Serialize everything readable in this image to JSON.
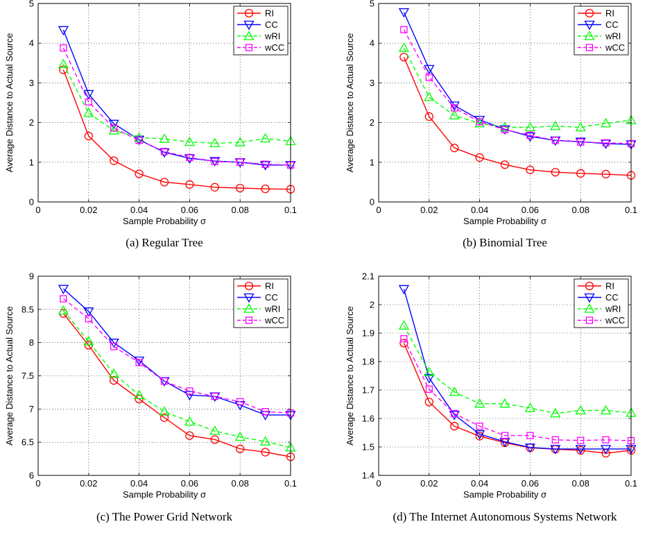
{
  "figure": {
    "legend_placement": "top-right",
    "grid": "dotted",
    "series_styles": [
      {
        "color": "#ff0000",
        "dash": "solid",
        "marker": "circle"
      },
      {
        "color": "#0000ff",
        "dash": "solid",
        "marker": "triangle-down"
      },
      {
        "color": "#00ff00",
        "dash": "dashed",
        "marker": "triangle-up"
      },
      {
        "color": "#ff00ff",
        "dash": "dashed",
        "marker": "square"
      }
    ]
  },
  "chart_data": [
    {
      "type": "line",
      "caption": "(a) Regular Tree",
      "xlabel": "Sample Probability σ",
      "ylabel": "Average Distance to Actual Source",
      "xlim": [
        0,
        0.1
      ],
      "ylim": [
        0,
        5
      ],
      "xticks": [
        "0",
        "0.02",
        "0.04",
        "0.06",
        "0.08",
        "0.1"
      ],
      "yticks": [
        "0",
        "1",
        "2",
        "3",
        "4",
        "5"
      ],
      "x": [
        0.01,
        0.02,
        0.03,
        0.04,
        0.05,
        0.06,
        0.07,
        0.08,
        0.09,
        0.1
      ],
      "series": [
        {
          "name": "RI",
          "values": [
            3.33,
            1.66,
            1.04,
            0.71,
            0.5,
            0.44,
            0.37,
            0.35,
            0.33,
            0.32
          ]
        },
        {
          "name": "CC",
          "values": [
            4.33,
            2.72,
            1.97,
            1.57,
            1.25,
            1.1,
            1.03,
            1.0,
            0.93,
            0.93
          ]
        },
        {
          "name": "wRI",
          "values": [
            3.47,
            2.24,
            1.8,
            1.62,
            1.59,
            1.51,
            1.48,
            1.5,
            1.6,
            1.53
          ]
        },
        {
          "name": "wCC",
          "values": [
            3.88,
            2.52,
            1.86,
            1.55,
            1.27,
            1.12,
            1.02,
            1.0,
            0.95,
            0.93
          ]
        }
      ]
    },
    {
      "type": "line",
      "caption": "(b) Binomial Tree",
      "xlabel": "Sample Probability σ",
      "ylabel": "Average Distance to Actual Source",
      "xlim": [
        0,
        0.1
      ],
      "ylim": [
        0,
        5
      ],
      "xticks": [
        "0",
        "0.02",
        "0.04",
        "0.06",
        "0.08",
        "0.1"
      ],
      "yticks": [
        "0",
        "1",
        "2",
        "3",
        "4",
        "5"
      ],
      "x": [
        0.01,
        0.02,
        0.03,
        0.04,
        0.05,
        0.06,
        0.07,
        0.08,
        0.09,
        0.1
      ],
      "series": [
        {
          "name": "RI",
          "values": [
            3.65,
            2.15,
            1.36,
            1.12,
            0.94,
            0.81,
            0.75,
            0.72,
            0.7,
            0.67
          ]
        },
        {
          "name": "CC",
          "values": [
            4.78,
            3.35,
            2.43,
            2.07,
            1.83,
            1.65,
            1.55,
            1.52,
            1.47,
            1.45
          ]
        },
        {
          "name": "wRI",
          "values": [
            3.88,
            2.64,
            2.18,
            1.98,
            1.88,
            1.88,
            1.91,
            1.88,
            1.98,
            2.06
          ]
        },
        {
          "name": "wCC",
          "values": [
            4.34,
            3.14,
            2.37,
            2.02,
            1.82,
            1.68,
            1.55,
            1.51,
            1.49,
            1.47
          ]
        }
      ]
    },
    {
      "type": "line",
      "caption": "(c) The Power Grid Network",
      "xlabel": "Sample Probability σ",
      "ylabel": "Average Distance to Actual Source",
      "xlim": [
        0,
        0.1
      ],
      "ylim": [
        6,
        9
      ],
      "xticks": [
        "0",
        "0.02",
        "0.04",
        "0.06",
        "0.08",
        "0.1"
      ],
      "yticks": [
        "6",
        "6.5",
        "7",
        "7.5",
        "8",
        "8.5",
        "9"
      ],
      "x": [
        0.01,
        0.02,
        0.03,
        0.04,
        0.05,
        0.06,
        0.07,
        0.08,
        0.09,
        0.1
      ],
      "series": [
        {
          "name": "RI",
          "values": [
            8.44,
            7.96,
            7.43,
            7.15,
            6.87,
            6.6,
            6.54,
            6.4,
            6.35,
            6.28
          ]
        },
        {
          "name": "CC",
          "values": [
            8.81,
            8.47,
            8.0,
            7.73,
            7.42,
            7.21,
            7.19,
            7.06,
            6.91,
            6.91
          ]
        },
        {
          "name": "wRI",
          "values": [
            8.48,
            8.02,
            7.53,
            7.21,
            6.96,
            6.81,
            6.67,
            6.58,
            6.51,
            6.42
          ]
        },
        {
          "name": "wCC",
          "values": [
            8.66,
            8.36,
            7.94,
            7.7,
            7.42,
            7.27,
            7.19,
            7.11,
            6.96,
            6.94
          ]
        }
      ]
    },
    {
      "type": "line",
      "caption": "(d) The Internet Autonomous Systems Network",
      "xlabel": "Sample Probability σ",
      "ylabel": "Average Distance to Actual Source",
      "xlim": [
        0,
        0.1
      ],
      "ylim": [
        1.4,
        2.1
      ],
      "xticks": [
        "0",
        "0.02",
        "0.04",
        "0.06",
        "0.08",
        "0.1"
      ],
      "yticks": [
        "1.4",
        "1.5",
        "1.6",
        "1.7",
        "1.8",
        "1.9",
        "2",
        "2.1"
      ],
      "x": [
        0.01,
        0.02,
        0.03,
        0.04,
        0.05,
        0.06,
        0.07,
        0.08,
        0.09,
        0.1
      ],
      "series": [
        {
          "name": "RI",
          "values": [
            1.865,
            1.658,
            1.573,
            1.538,
            1.515,
            1.497,
            1.492,
            1.488,
            1.478,
            1.488
          ]
        },
        {
          "name": "CC",
          "values": [
            2.055,
            1.742,
            1.613,
            1.545,
            1.518,
            1.498,
            1.493,
            1.493,
            1.493,
            1.493
          ]
        },
        {
          "name": "wRI",
          "values": [
            1.926,
            1.763,
            1.693,
            1.652,
            1.652,
            1.637,
            1.618,
            1.628,
            1.628,
            1.62
          ]
        },
        {
          "name": "wCC",
          "values": [
            1.88,
            1.703,
            1.617,
            1.573,
            1.54,
            1.54,
            1.525,
            1.523,
            1.525,
            1.522
          ]
        }
      ]
    }
  ]
}
